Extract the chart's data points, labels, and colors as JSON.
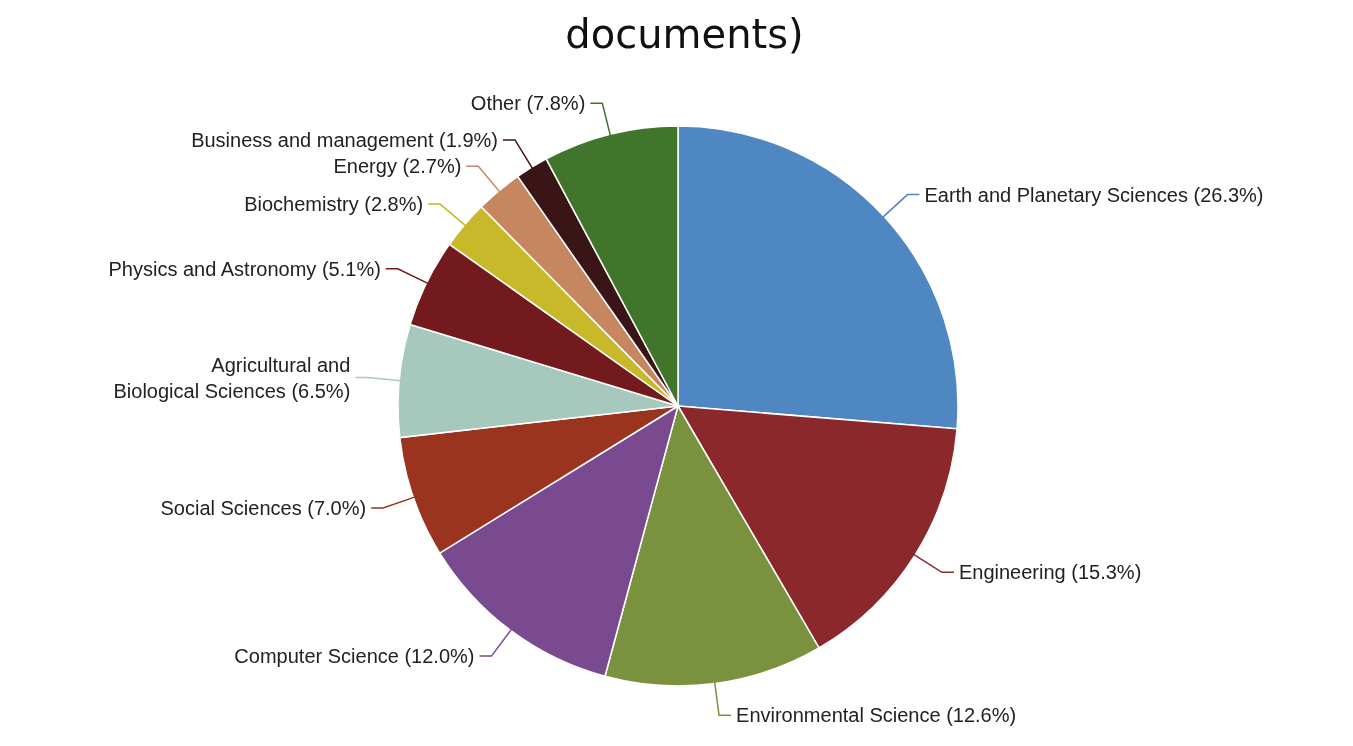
{
  "chart_data": {
    "type": "pie",
    "title": "documents)",
    "categories": [
      "Earth and Planetary Sciences",
      "Engineering",
      "Environmental Science",
      "Computer Science",
      "Social Sciences",
      "Agricultural and Biological Sciences",
      "Physics and Astronomy",
      "Biochemistry",
      "Energy",
      "Business and management",
      "Other"
    ],
    "values": [
      26.3,
      15.3,
      12.6,
      12.0,
      7.0,
      6.5,
      5.1,
      2.8,
      2.7,
      1.9,
      7.8
    ],
    "value_labels": [
      "(26.3%)",
      "(15.3%)",
      "(12.6%)",
      "(12.0%)",
      "(7.0%)",
      "(6.5%)",
      "(5.1%)",
      "(2.8%)",
      "(2.7%)",
      "(1.9%)",
      "(7.8%)"
    ],
    "colors": [
      "#4f87c2",
      "#8b282c",
      "#7a923e",
      "#7a4a90",
      "#9a341e",
      "#a7c9bd",
      "#731a1e",
      "#c8b92a",
      "#c58660",
      "#3a1517",
      "#41752c"
    ]
  }
}
